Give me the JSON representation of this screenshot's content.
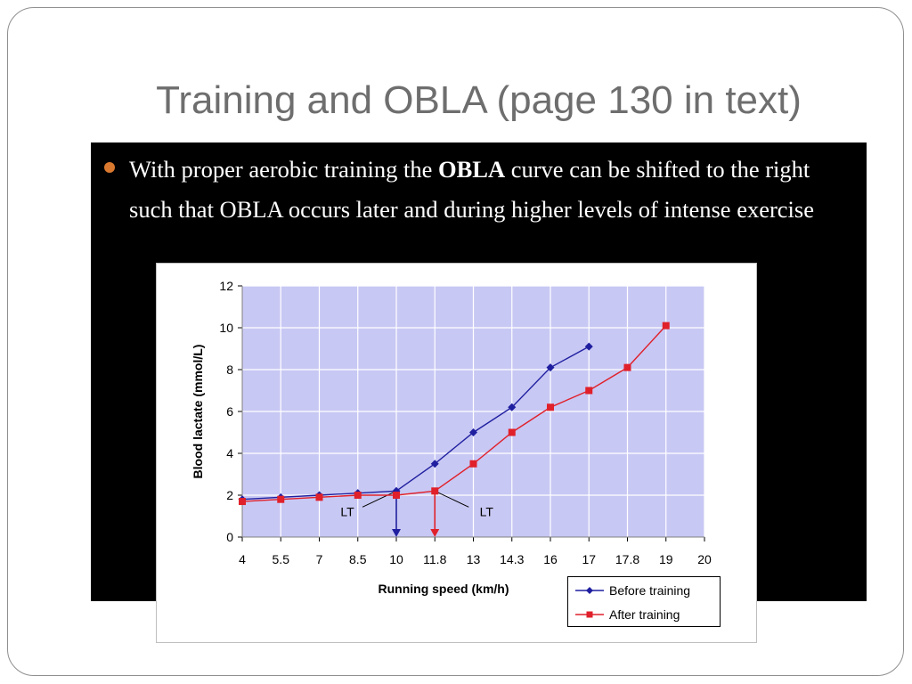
{
  "slide": {
    "title": "Training and OBLA  (page 130 in text)",
    "bullet": {
      "before": "With proper aerobic training the ",
      "bold": "OBLA",
      "after": " curve can be shifted to the right such that OBLA occurs later and during higher levels of intense exercise"
    }
  },
  "colors": {
    "title": "#6e6e6e",
    "panel": "#000000",
    "bullet": "#d9792f",
    "plot_area": "#c8c8f4",
    "before_training": "#1f1fa0",
    "after_training": "#e0202a"
  },
  "chart_data": {
    "type": "line",
    "categories": [
      "4",
      "5.5",
      "7",
      "8.5",
      "10",
      "11.8",
      "13",
      "14.3",
      "16",
      "17",
      "17.8",
      "19",
      "20"
    ],
    "xlabel": "Running speed (km/h)",
    "ylabel": "Blood lactate (mmol/L)",
    "ylim": [
      0,
      12
    ],
    "yticks": [
      "0",
      "2",
      "4",
      "6",
      "8",
      "10",
      "12"
    ],
    "grid": true,
    "legend_position": "bottom-right",
    "series": [
      {
        "name": "Before training",
        "marker": "diamond",
        "values": [
          1.8,
          1.9,
          2.0,
          2.1,
          2.2,
          3.5,
          5.0,
          6.2,
          8.1,
          9.1,
          null,
          null,
          null
        ]
      },
      {
        "name": "After training",
        "marker": "square",
        "values": [
          1.7,
          1.8,
          1.9,
          2.0,
          2.0,
          2.2,
          3.5,
          5.0,
          6.2,
          7.0,
          8.1,
          10.1,
          null
        ]
      }
    ],
    "annotations": [
      {
        "text": "LT",
        "series": "Before training",
        "x": "10"
      },
      {
        "text": "LT",
        "series": "After training",
        "x": "11.8"
      }
    ]
  }
}
